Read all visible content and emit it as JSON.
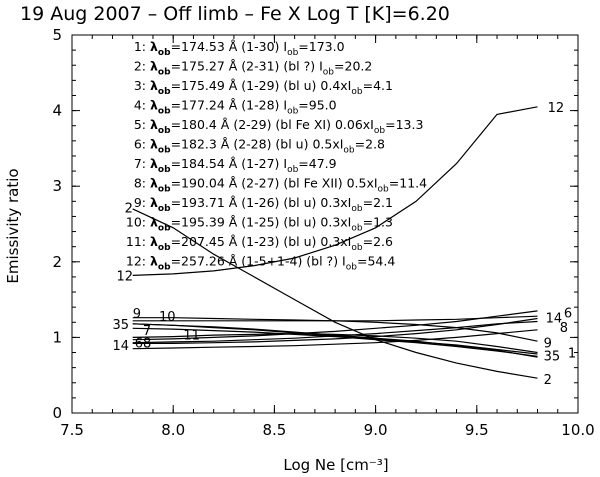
{
  "chart_data": {
    "type": "line",
    "title": "19 Aug 2007 – Off limb –  Fe X  Log T [K]=6.20",
    "xlabel": "Log Ne [cm⁻³]",
    "ylabel": "Emissivity ratio",
    "xlim": [
      7.5,
      10.0
    ],
    "ylim": [
      0,
      5
    ],
    "xticks": [
      "7.5",
      "8.0",
      "8.5",
      "9.0",
      "9.5",
      "10.0"
    ],
    "yticks": [
      "0",
      "1",
      "2",
      "3",
      "4",
      "5"
    ],
    "x": [
      7.8,
      8.0,
      8.2,
      8.4,
      8.6,
      8.8,
      9.0,
      9.2,
      9.4,
      9.6,
      9.8
    ],
    "legend": [
      {
        "num": "1:",
        "sym": "λ",
        "sub": "ob",
        "rest": "=174.53 Å (1-30) I",
        "sub2": "ob",
        "tail": "=173.0"
      },
      {
        "num": "2:",
        "sym": "λ",
        "sub": "ob",
        "rest": "=175.27 Å (2-31) (bl ?) I",
        "sub2": "ob",
        "tail": "=20.2"
      },
      {
        "num": "3:",
        "sym": "λ",
        "sub": "ob",
        "rest": "=175.49 Å (1-29) (bl u) 0.4xI",
        "sub2": "ob",
        "tail": "=4.1"
      },
      {
        "num": "4:",
        "sym": "λ",
        "sub": "ob",
        "rest": "=177.24 Å (1-28) I",
        "sub2": "ob",
        "tail": "=95.0"
      },
      {
        "num": "5:",
        "sym": "λ",
        "sub": "ob",
        "rest": "=180.4 Å (2-29) (bl Fe XI) 0.06xI",
        "sub2": "ob",
        "tail": "=13.3"
      },
      {
        "num": "6:",
        "sym": "λ",
        "sub": "ob",
        "rest": "=182.3 Å (2-28) (bl u) 0.5xI",
        "sub2": "ob",
        "tail": "=2.8"
      },
      {
        "num": "7:",
        "sym": "λ",
        "sub": "ob",
        "rest": "=184.54 Å (1-27) I",
        "sub2": "ob",
        "tail": "=47.9"
      },
      {
        "num": "8:",
        "sym": "λ",
        "sub": "ob",
        "rest": "=190.04 Å (2-27) (bl Fe XII) 0.5xI",
        "sub2": "ob",
        "tail": "=11.4"
      },
      {
        "num": "9:",
        "sym": "λ",
        "sub": "ob",
        "rest": "=193.71 Å (1-26) (bl u) 0.3xI",
        "sub2": "ob",
        "tail": "=2.1"
      },
      {
        "num": "10:",
        "sym": "λ",
        "sub": "ob",
        "rest": "=195.39 Å (1-25) (bl u) 0.3xI",
        "sub2": "ob",
        "tail": "=1.3"
      },
      {
        "num": "11:",
        "sym": "λ",
        "sub": "ob",
        "rest": "=207.45 Å (1-23) (bl u) 0.3xI",
        "sub2": "ob",
        "tail": "=2.6"
      },
      {
        "num": "12:",
        "sym": "λ",
        "sub": "ob",
        "rest": "=257.26 Å (1-5+1-4) (bl ?) I",
        "sub2": "ob",
        "tail": "=54.4"
      }
    ],
    "series": [
      {
        "name": "1",
        "values": [
          0.85,
          0.86,
          0.87,
          0.88,
          0.89,
          0.91,
          0.93,
          0.96,
          1.0,
          1.05,
          1.1
        ]
      },
      {
        "name": "2",
        "values": [
          2.7,
          2.45,
          2.1,
          1.8,
          1.5,
          1.2,
          0.97,
          0.8,
          0.66,
          0.55,
          0.46
        ]
      },
      {
        "name": "3",
        "values": [
          1.18,
          1.16,
          1.13,
          1.1,
          1.06,
          1.02,
          0.98,
          0.94,
          0.9,
          0.84,
          0.78
        ]
      },
      {
        "name": "4",
        "values": [
          0.92,
          0.92,
          0.93,
          0.94,
          0.96,
          0.98,
          1.01,
          1.05,
          1.1,
          1.17,
          1.25
        ]
      },
      {
        "name": "5",
        "values": [
          1.18,
          1.16,
          1.14,
          1.11,
          1.07,
          1.03,
          0.99,
          0.95,
          0.89,
          0.83,
          0.74
        ]
      },
      {
        "name": "6",
        "values": [
          0.97,
          0.98,
          1.0,
          1.02,
          1.05,
          1.08,
          1.12,
          1.16,
          1.21,
          1.28,
          1.35
        ]
      },
      {
        "name": "7",
        "values": [
          1.12,
          1.11,
          1.09,
          1.07,
          1.04,
          1.01,
          0.97,
          0.93,
          0.88,
          0.82,
          0.75
        ]
      },
      {
        "name": "8",
        "values": [
          0.93,
          0.94,
          0.95,
          0.97,
          0.99,
          1.02,
          1.05,
          1.09,
          1.13,
          1.18,
          1.21
        ]
      },
      {
        "name": "9",
        "values": [
          1.26,
          1.26,
          1.25,
          1.24,
          1.23,
          1.22,
          1.2,
          1.17,
          1.13,
          1.06,
          0.95
        ]
      },
      {
        "name": "10",
        "values": [
          1.22,
          1.22,
          1.22,
          1.22,
          1.22,
          1.22,
          1.22,
          1.23,
          1.24,
          1.26,
          1.28
        ]
      },
      {
        "name": "11",
        "values": [
          1.0,
          1.01,
          1.03,
          1.04,
          1.05,
          1.04,
          1.02,
          0.99,
          0.95,
          0.88,
          0.8
        ]
      },
      {
        "name": "12",
        "values": [
          1.82,
          1.84,
          1.88,
          1.95,
          2.05,
          2.22,
          2.45,
          2.8,
          3.3,
          3.95,
          4.05
        ]
      }
    ],
    "line_label_positions": [
      {
        "text": "2",
        "x": 7.76,
        "y": 2.72
      },
      {
        "text": "12",
        "x": 7.72,
        "y": 1.82
      },
      {
        "text": "9",
        "x": 7.8,
        "y": 1.32
      },
      {
        "text": "10",
        "x": 7.93,
        "y": 1.28
      },
      {
        "text": "35",
        "x": 7.7,
        "y": 1.18
      },
      {
        "text": "7",
        "x": 7.85,
        "y": 1.1
      },
      {
        "text": "11",
        "x": 8.05,
        "y": 1.04
      },
      {
        "text": "14",
        "x": 7.7,
        "y": 0.9
      },
      {
        "text": "68",
        "x": 7.81,
        "y": 0.93
      },
      {
        "text": "12",
        "x": 9.85,
        "y": 4.05
      },
      {
        "text": "14",
        "x": 9.84,
        "y": 1.26
      },
      {
        "text": "6",
        "x": 9.93,
        "y": 1.33
      },
      {
        "text": "8",
        "x": 9.91,
        "y": 1.14
      },
      {
        "text": "9",
        "x": 9.83,
        "y": 0.93
      },
      {
        "text": "35",
        "x": 9.83,
        "y": 0.76
      },
      {
        "text": "1",
        "x": 9.95,
        "y": 0.8
      },
      {
        "text": "2",
        "x": 9.83,
        "y": 0.45
      }
    ]
  }
}
